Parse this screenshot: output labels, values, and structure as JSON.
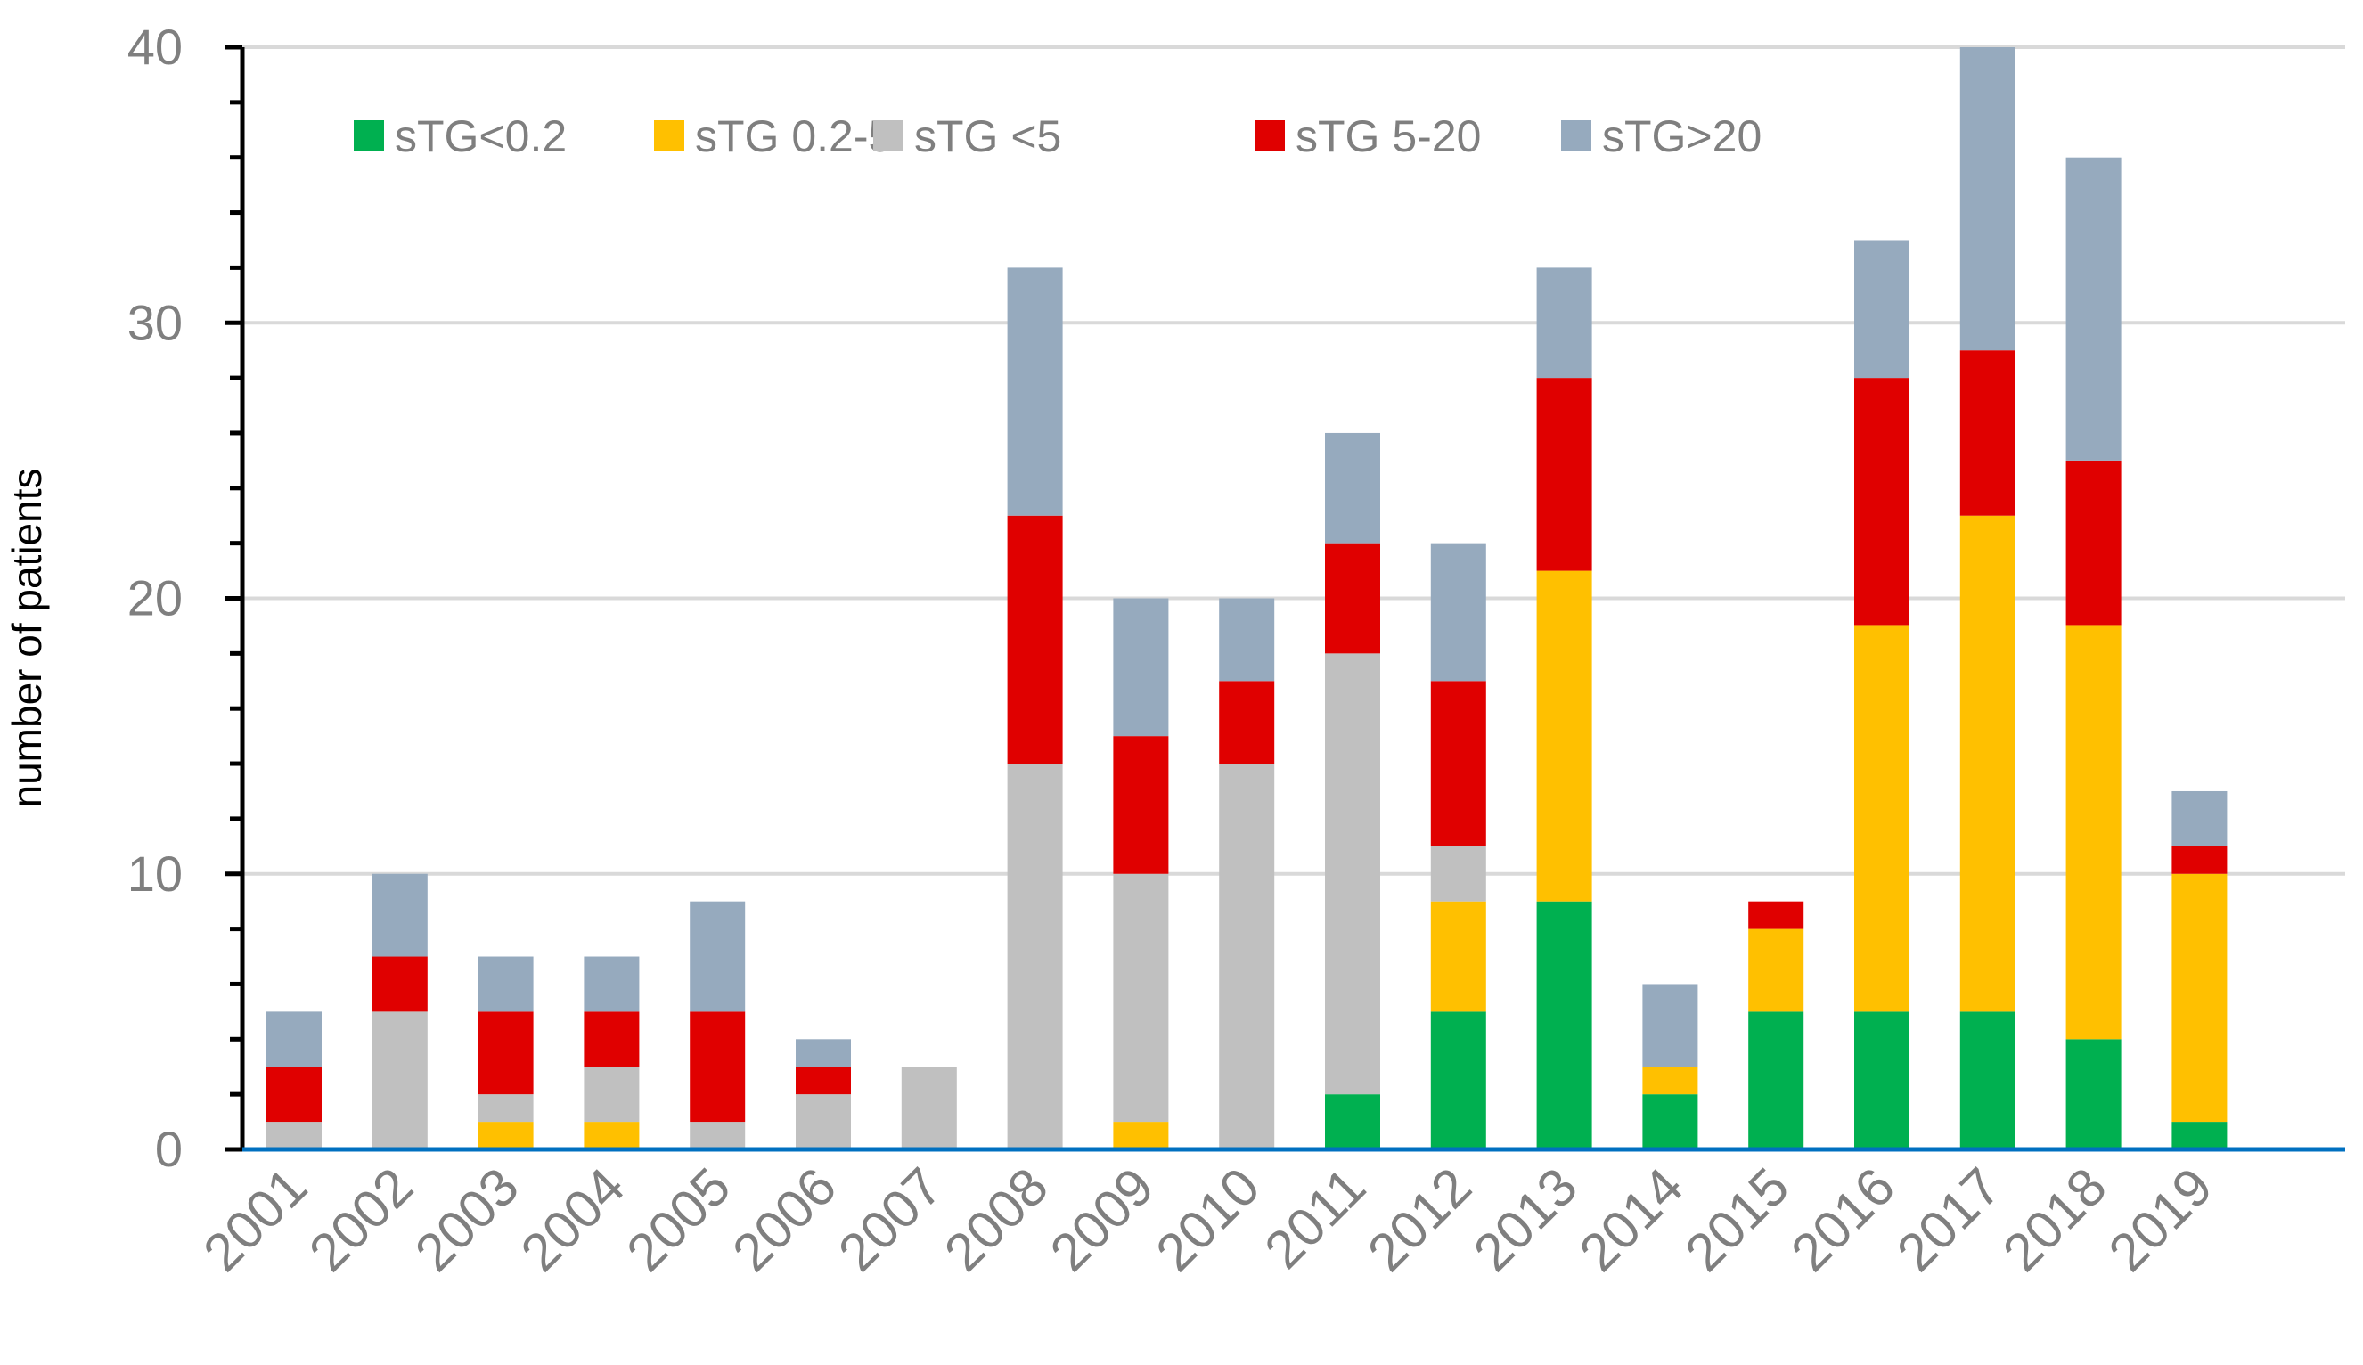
{
  "chart_data": {
    "type": "bar",
    "stacked": true,
    "title": "",
    "xlabel": "",
    "ylabel": "number of patients",
    "ylim": [
      0,
      40
    ],
    "yticks": [
      0,
      10,
      20,
      30,
      40
    ],
    "grid": true,
    "legend_position": "top-left",
    "categories": [
      "2001",
      "2002",
      "2003",
      "2004",
      "2005",
      "2006",
      "2007",
      "2008",
      "2009",
      "2010",
      "2011",
      "2012",
      "2013",
      "2014",
      "2015",
      "2016",
      "2017",
      "2018",
      "2019"
    ],
    "series": [
      {
        "name": "sTG<0.2",
        "color": "#00b050",
        "values": [
          0,
          0,
          0,
          0,
          0,
          0,
          0,
          0,
          0,
          0,
          2,
          5,
          9,
          2,
          5,
          5,
          5,
          4,
          1
        ]
      },
      {
        "name": "sTG 0.2-5",
        "color": "#ffc000",
        "values": [
          0,
          0,
          1,
          1,
          0,
          0,
          0,
          0,
          1,
          0,
          0,
          4,
          12,
          1,
          3,
          14,
          18,
          15,
          9
        ]
      },
      {
        "name": "sTG <5",
        "color": "#c0c0c0",
        "values": [
          1,
          5,
          1,
          2,
          1,
          2,
          3,
          14,
          9,
          14,
          16,
          2,
          0,
          0,
          0,
          0,
          0,
          0,
          0
        ]
      },
      {
        "name": "sTG 5-20",
        "color": "#e00000",
        "values": [
          2,
          2,
          3,
          2,
          4,
          1,
          0,
          9,
          5,
          3,
          4,
          6,
          7,
          0,
          1,
          9,
          6,
          6,
          1
        ]
      },
      {
        "name": "sTG>20",
        "color": "#96aabe",
        "values": [
          2,
          3,
          2,
          2,
          4,
          1,
          0,
          9,
          5,
          3,
          4,
          5,
          4,
          3,
          0,
          5,
          11,
          11,
          2
        ]
      }
    ]
  },
  "colors": {
    "axis_left": "#000000",
    "axis_bottom": "#0070c0",
    "grid": "#d9d9d9",
    "tick_label": "#7f7f7f",
    "ylabel": "#000000"
  }
}
